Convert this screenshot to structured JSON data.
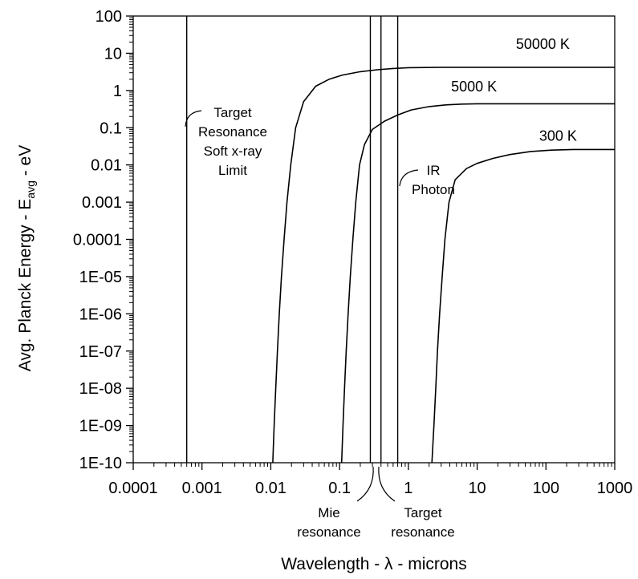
{
  "chart_data": {
    "type": "line",
    "x_scale": "log",
    "y_scale": "log",
    "xlim": [
      0.0001,
      1000
    ],
    "ylim": [
      1e-10,
      100
    ],
    "grid": false,
    "xlabel": "Wavelength - λ - microns",
    "ylabel_main": "Avg. Planck Energy - E",
    "ylabel_sub": "avg",
    "ylabel_tail": " - eV",
    "x_ticks": [
      {
        "value": 0.0001,
        "label": "0.0001"
      },
      {
        "value": 0.001,
        "label": "0.001"
      },
      {
        "value": 0.01,
        "label": "0.01"
      },
      {
        "value": 0.1,
        "label": "0.1"
      },
      {
        "value": 1,
        "label": "1"
      },
      {
        "value": 10,
        "label": "10"
      },
      {
        "value": 100,
        "label": "100"
      },
      {
        "value": 1000,
        "label": "1000"
      }
    ],
    "y_ticks": [
      {
        "value": 100,
        "label": "100"
      },
      {
        "value": 10,
        "label": "10"
      },
      {
        "value": 1,
        "label": "1"
      },
      {
        "value": 0.1,
        "label": "0.1"
      },
      {
        "value": 0.01,
        "label": "0.01"
      },
      {
        "value": 0.001,
        "label": "0.001"
      },
      {
        "value": 0.0001,
        "label": "0.0001"
      },
      {
        "value": 1e-05,
        "label": "1E-05"
      },
      {
        "value": 1e-06,
        "label": "1E-06"
      },
      {
        "value": 1e-07,
        "label": "1E-07"
      },
      {
        "value": 1e-08,
        "label": "1E-08"
      },
      {
        "value": 1e-09,
        "label": "1E-09"
      },
      {
        "value": 1e-10,
        "label": "1E-10"
      }
    ],
    "series": [
      {
        "name": "50000 K",
        "label_at": {
          "x": 90,
          "y": 13
        },
        "points": [
          [
            0.0107,
            1e-10
          ],
          [
            0.0112,
            1e-09
          ],
          [
            0.0118,
            1e-08
          ],
          [
            0.0125,
            1e-07
          ],
          [
            0.0133,
            1e-06
          ],
          [
            0.0143,
            1e-05
          ],
          [
            0.0156,
            0.0001
          ],
          [
            0.0172,
            0.001
          ],
          [
            0.0195,
            0.01
          ],
          [
            0.023,
            0.1
          ],
          [
            0.03,
            0.5
          ],
          [
            0.045,
            1.3
          ],
          [
            0.07,
            2.0
          ],
          [
            0.11,
            2.6
          ],
          [
            0.2,
            3.2
          ],
          [
            0.35,
            3.6
          ],
          [
            0.6,
            3.9
          ],
          [
            1,
            4.1
          ],
          [
            3,
            4.2
          ],
          [
            1000,
            4.2
          ]
        ]
      },
      {
        "name": "5000 K",
        "label_at": {
          "x": 9,
          "y": 0.95
        },
        "points": [
          [
            0.107,
            1e-10
          ],
          [
            0.112,
            1e-09
          ],
          [
            0.118,
            1e-08
          ],
          [
            0.125,
            1e-07
          ],
          [
            0.133,
            1e-06
          ],
          [
            0.143,
            1e-05
          ],
          [
            0.156,
            0.0001
          ],
          [
            0.172,
            0.001
          ],
          [
            0.195,
            0.01
          ],
          [
            0.23,
            0.035
          ],
          [
            0.3,
            0.09
          ],
          [
            0.45,
            0.15
          ],
          [
            0.7,
            0.22
          ],
          [
            1.1,
            0.3
          ],
          [
            2,
            0.37
          ],
          [
            3.5,
            0.41
          ],
          [
            6,
            0.43
          ],
          [
            10,
            0.44
          ],
          [
            30,
            0.44
          ],
          [
            1000,
            0.44
          ]
        ]
      },
      {
        "name": "300 K",
        "label_at": {
          "x": 150,
          "y": 0.045
        },
        "points": [
          [
            2.2,
            1e-10
          ],
          [
            2.35,
            1e-09
          ],
          [
            2.5,
            1e-08
          ],
          [
            2.65,
            1e-07
          ],
          [
            2.85,
            1e-06
          ],
          [
            3.1,
            1e-05
          ],
          [
            3.4,
            0.0001
          ],
          [
            3.9,
            0.001
          ],
          [
            4.8,
            0.004
          ],
          [
            7,
            0.008
          ],
          [
            10,
            0.011
          ],
          [
            17,
            0.015
          ],
          [
            30,
            0.019
          ],
          [
            60,
            0.023
          ],
          [
            120,
            0.025
          ],
          [
            250,
            0.026
          ],
          [
            1000,
            0.026
          ]
        ]
      }
    ],
    "vlines": [
      {
        "name": "soft-xray-limit",
        "x": 0.0006
      },
      {
        "name": "mie-resonance",
        "x": 0.28
      },
      {
        "name": "target-resonance",
        "x": 0.4
      },
      {
        "name": "ir-photon",
        "x": 0.7
      }
    ],
    "annotations": [
      {
        "name": "soft-xray-annotation",
        "lines": [
          "Target",
          "Resonance",
          "Soft x-ray",
          "Limit"
        ]
      },
      {
        "name": "ir-photon-annotation",
        "lines": [
          "IR",
          "Photon"
        ]
      },
      {
        "name": "mie-annotation",
        "lines": [
          "Mie",
          "resonance"
        ]
      },
      {
        "name": "target-resonance-annotation",
        "lines": [
          "Target",
          "resonance"
        ]
      }
    ]
  }
}
